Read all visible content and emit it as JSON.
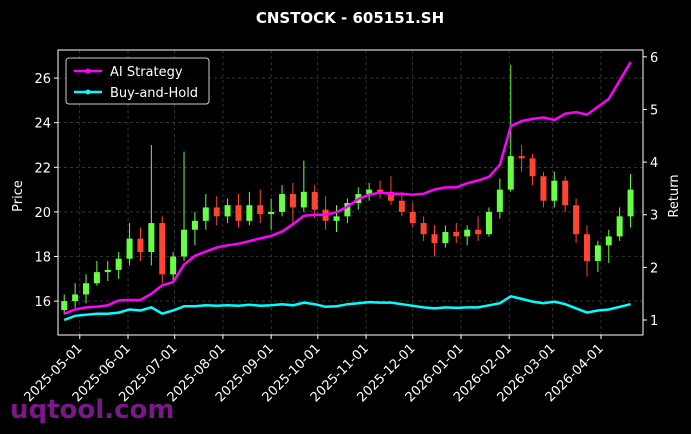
{
  "chart_data": {
    "type": "candlestick",
    "title": "CNSTOCK - 605151.SH",
    "ylabel": "Price",
    "y2label": "Return",
    "watermark": "uqtool.com",
    "x": [
      "2025-04-21",
      "2025-04-28",
      "2025-05-05",
      "2025-05-12",
      "2025-05-19",
      "2025-05-26",
      "2025-06-02",
      "2025-06-09",
      "2025-06-16",
      "2025-06-23",
      "2025-06-30",
      "2025-07-07",
      "2025-07-14",
      "2025-07-21",
      "2025-07-28",
      "2025-08-04",
      "2025-08-11",
      "2025-08-18",
      "2025-08-25",
      "2025-09-01",
      "2025-09-08",
      "2025-09-15",
      "2025-09-22",
      "2025-09-29",
      "2025-10-06",
      "2025-10-13",
      "2025-10-20",
      "2025-10-27",
      "2025-11-03",
      "2025-11-10",
      "2025-11-17",
      "2025-11-24",
      "2025-12-01",
      "2025-12-08",
      "2025-12-15",
      "2025-12-22",
      "2025-12-29",
      "2026-01-05",
      "2026-01-12",
      "2026-01-19",
      "2026-01-26",
      "2026-02-02",
      "2026-02-09",
      "2026-02-16",
      "2026-02-23",
      "2026-03-02",
      "2026-03-09",
      "2026-03-16",
      "2026-03-23",
      "2026-03-30",
      "2026-04-06",
      "2026-04-13",
      "2026-04-20"
    ],
    "open": [
      15.6,
      16.0,
      16.3,
      16.8,
      17.3,
      17.4,
      17.9,
      18.8,
      18.2,
      19.5,
      17.2,
      18.0,
      19.2,
      19.6,
      20.2,
      19.8,
      20.3,
      19.6,
      20.3,
      19.9,
      20.0,
      20.8,
      20.2,
      20.9,
      20.1,
      19.6,
      19.8,
      20.4,
      20.8,
      21.0,
      20.9,
      20.5,
      20.0,
      19.5,
      19.0,
      18.6,
      19.1,
      18.9,
      19.2,
      19.0,
      20.0,
      21.0,
      22.5,
      22.4,
      21.6,
      20.5,
      21.4,
      20.3,
      19.0,
      17.8,
      18.5,
      18.9,
      19.8
    ],
    "high": [
      16.3,
      16.8,
      17.2,
      17.8,
      17.8,
      18.2,
      19.5,
      19.3,
      23.0,
      19.8,
      18.2,
      22.7,
      20.0,
      20.8,
      20.7,
      20.6,
      20.8,
      20.9,
      21.0,
      20.6,
      21.2,
      21.3,
      22.3,
      21.2,
      20.7,
      20.3,
      20.6,
      21.1,
      21.3,
      21.4,
      21.6,
      20.9,
      20.4,
      19.8,
      19.4,
      19.4,
      19.5,
      19.4,
      19.8,
      20.2,
      21.5,
      26.6,
      23.0,
      22.6,
      21.8,
      21.8,
      21.6,
      20.6,
      19.4,
      18.7,
      19.2,
      20.2,
      21.7
    ],
    "low": [
      15.4,
      15.7,
      15.9,
      16.7,
      16.9,
      17.0,
      17.6,
      17.8,
      17.6,
      16.8,
      16.9,
      17.8,
      18.5,
      19.2,
      19.4,
      19.5,
      19.3,
      19.4,
      19.5,
      19.2,
      19.8,
      19.5,
      20.0,
      19.7,
      19.2,
      19.1,
      19.5,
      20.1,
      20.5,
      20.6,
      20.3,
      19.8,
      19.3,
      18.7,
      18.0,
      18.4,
      18.6,
      18.5,
      18.7,
      18.9,
      19.7,
      20.9,
      21.8,
      21.2,
      20.2,
      20.2,
      20.0,
      18.6,
      17.1,
      17.3,
      17.7,
      18.7,
      19.3
    ],
    "close": [
      16.0,
      16.3,
      16.8,
      17.3,
      17.4,
      17.9,
      18.8,
      18.2,
      19.5,
      17.2,
      18.0,
      19.2,
      19.6,
      20.2,
      19.8,
      20.3,
      19.6,
      20.3,
      19.9,
      20.0,
      20.8,
      20.2,
      20.9,
      20.1,
      19.6,
      19.8,
      20.4,
      20.8,
      21.0,
      20.9,
      20.5,
      20.0,
      19.5,
      19.0,
      18.6,
      19.1,
      18.9,
      19.2,
      19.0,
      20.0,
      21.0,
      22.5,
      22.4,
      21.6,
      20.5,
      21.4,
      20.3,
      19.0,
      17.8,
      18.5,
      18.9,
      19.8,
      21.0
    ],
    "up_color": "#66ff44",
    "down_color": "#ff4433",
    "series": [
      {
        "name": "AI Strategy",
        "color": "#ff00ff",
        "axis": "y2",
        "values": [
          1.12,
          1.2,
          1.24,
          1.25,
          1.28,
          1.37,
          1.38,
          1.38,
          1.5,
          1.66,
          1.72,
          2.05,
          2.22,
          2.3,
          2.38,
          2.42,
          2.45,
          2.5,
          2.55,
          2.6,
          2.68,
          2.82,
          2.98,
          3.0,
          3.0,
          3.05,
          3.15,
          3.3,
          3.38,
          3.42,
          3.4,
          3.4,
          3.38,
          3.4,
          3.48,
          3.52,
          3.52,
          3.6,
          3.65,
          3.72,
          3.95,
          4.68,
          4.78,
          4.82,
          4.85,
          4.8,
          4.92,
          4.95,
          4.9,
          5.05,
          5.2,
          5.55,
          5.9
        ]
      },
      {
        "name": "Buy-and-Hold",
        "color": "#00ffff",
        "axis": "y2",
        "values": [
          1.0,
          1.08,
          1.1,
          1.12,
          1.12,
          1.14,
          1.2,
          1.18,
          1.24,
          1.12,
          1.18,
          1.26,
          1.26,
          1.28,
          1.27,
          1.28,
          1.27,
          1.29,
          1.27,
          1.28,
          1.3,
          1.28,
          1.33,
          1.3,
          1.25,
          1.26,
          1.3,
          1.32,
          1.34,
          1.33,
          1.33,
          1.3,
          1.27,
          1.24,
          1.22,
          1.24,
          1.23,
          1.24,
          1.24,
          1.28,
          1.32,
          1.45,
          1.4,
          1.35,
          1.32,
          1.35,
          1.3,
          1.22,
          1.14,
          1.18,
          1.2,
          1.25,
          1.3
        ]
      }
    ],
    "xlim": [
      "2025-04-17",
      "2026-04-28"
    ],
    "xticks": [
      "2025-05-01",
      "2025-06-01",
      "2025-07-01",
      "2025-08-01",
      "2025-09-01",
      "2025-10-01",
      "2025-11-01",
      "2025-12-01",
      "2026-01-01",
      "2026-02-01",
      "2026-03-01",
      "2026-04-01"
    ],
    "ylim": [
      14.48,
      27.26
    ],
    "yticks": [
      16,
      18,
      20,
      22,
      24,
      26
    ],
    "y2lim": [
      0.715,
      6.13
    ],
    "y2ticks": [
      1,
      2,
      3,
      4,
      5,
      6
    ],
    "grid": true,
    "legend": "upper left"
  }
}
